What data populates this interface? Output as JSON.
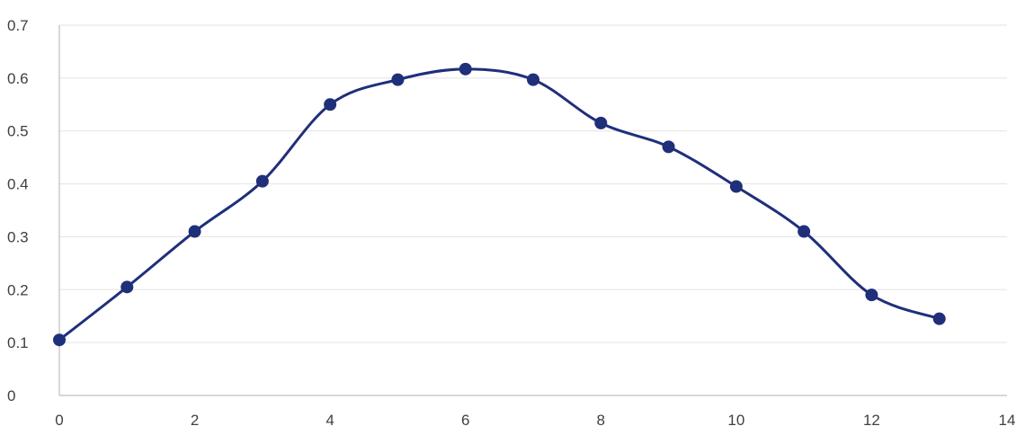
{
  "chart_data": {
    "type": "scatter",
    "title": "",
    "xlabel": "",
    "ylabel": "",
    "xlim": [
      0,
      14
    ],
    "ylim": [
      0,
      0.7
    ],
    "xticks": [
      0,
      2,
      4,
      6,
      8,
      10,
      12,
      14
    ],
    "yticks": [
      0,
      0.1,
      0.2,
      0.3,
      0.4,
      0.5,
      0.6,
      0.7
    ],
    "xtick_labels": [
      "0",
      "2",
      "4",
      "6",
      "8",
      "10",
      "12",
      "14"
    ],
    "ytick_labels": [
      "0",
      "0.1",
      "0.2",
      "0.3",
      "0.4",
      "0.5",
      "0.6",
      "0.7"
    ],
    "grid": "horizontal",
    "smooth_line": true,
    "markers": true,
    "series": [
      {
        "color": "#1f2f7a",
        "x": [
          0,
          1,
          2,
          3,
          4,
          5,
          6,
          7,
          8,
          9,
          10,
          11,
          12,
          13
        ],
        "y": [
          0.105,
          0.205,
          0.31,
          0.405,
          0.55,
          0.597,
          0.617,
          0.597,
          0.515,
          0.47,
          0.395,
          0.31,
          0.19,
          0.145
        ]
      }
    ]
  }
}
